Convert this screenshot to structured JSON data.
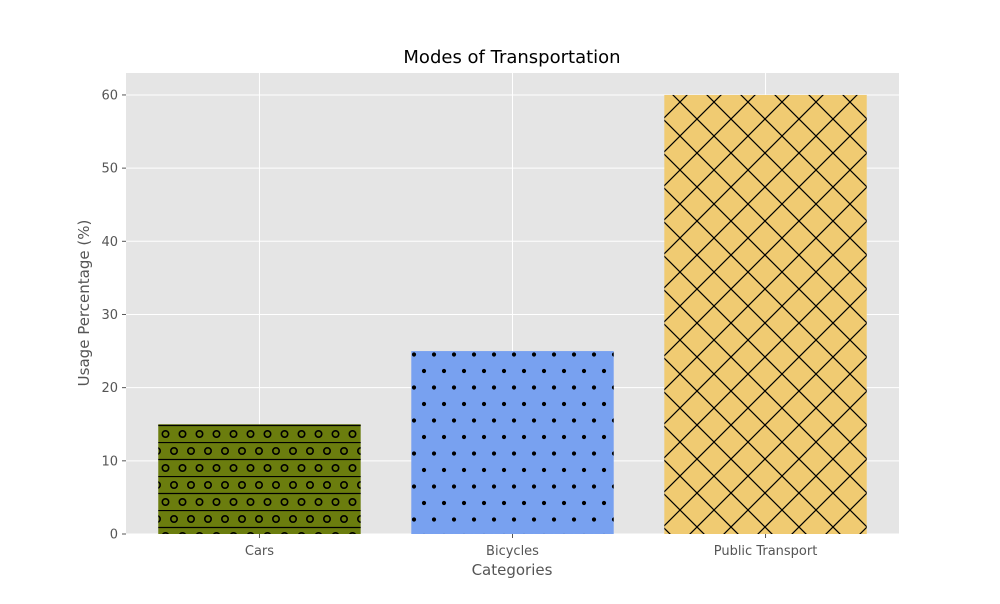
{
  "chart_data": {
    "type": "bar",
    "title": "Modes of Transportation",
    "xlabel": "Categories",
    "ylabel": "Usage Percentage (%)",
    "categories": [
      "Cars",
      "Bicycles",
      "Public Transport"
    ],
    "values": [
      15,
      25,
      60
    ],
    "ylim": [
      0,
      63
    ],
    "yticks": [
      "0",
      "10",
      "20",
      "30",
      "40",
      "50",
      "60"
    ],
    "grid": true,
    "colors": [
      "#6b7d0e",
      "#78a1f0",
      "#f0cb72"
    ],
    "hatches": [
      "-o",
      ".",
      "x"
    ],
    "background": "#e5e5e5",
    "grid_color": "#ffffff"
  }
}
